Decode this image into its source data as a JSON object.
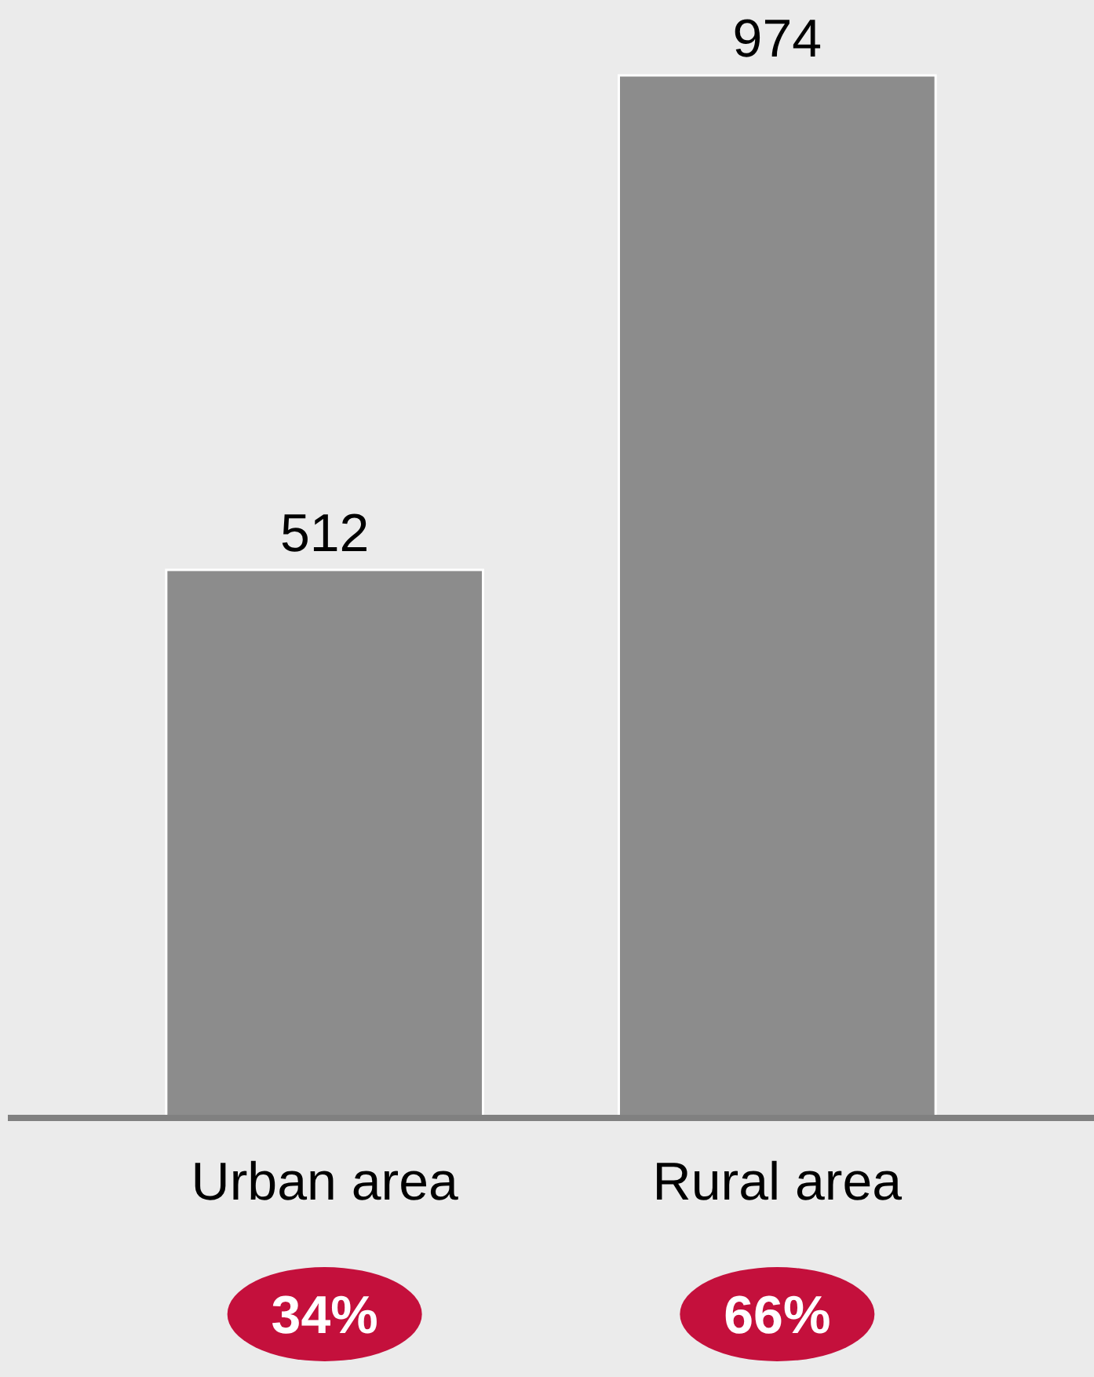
{
  "chart_data": {
    "type": "bar",
    "categories": [
      "Urban area",
      "Rural area"
    ],
    "values": [
      512,
      974
    ],
    "color": "#8c8c8c",
    "data_labels": true,
    "grid": false,
    "annotations": [
      "34%",
      "66%"
    ]
  }
}
